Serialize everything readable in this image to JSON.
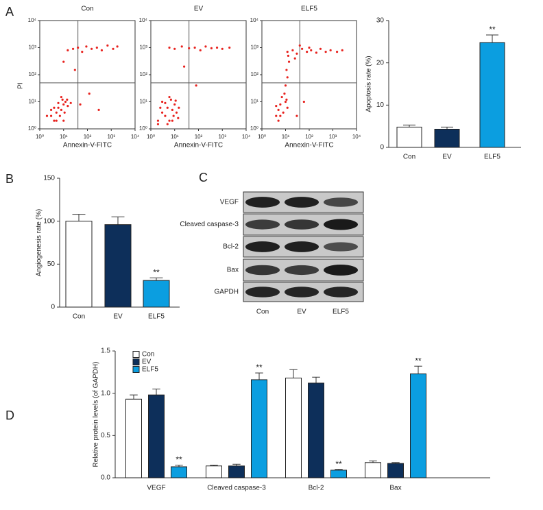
{
  "panel_labels": [
    "A",
    "B",
    "C",
    "D"
  ],
  "blot": {
    "rows": [
      "VEGF",
      "Cleaved caspase-3",
      "Bcl-2",
      "Bax",
      "GAPDH"
    ],
    "columns": [
      "Con",
      "EV",
      "ELF5"
    ]
  },
  "chart_data": [
    {
      "type": "scatter",
      "title": "Con",
      "xlabel": "Annexin-V-FITC",
      "ylabel": "PI",
      "color": "#e8231f",
      "log_scale": true,
      "xlim": [
        1,
        10000
      ],
      "ylim": [
        1,
        10000
      ],
      "xticks": [
        {
          "value": 1,
          "label": "10⁰"
        },
        {
          "value": 10,
          "label": "10¹"
        },
        {
          "value": 100,
          "label": "10²"
        },
        {
          "value": 1000,
          "label": "10³"
        },
        {
          "value": 10000,
          "label": "10⁴"
        }
      ],
      "yticks": [
        {
          "value": 1,
          "label": "10⁰"
        },
        {
          "value": 10,
          "label": "10¹"
        },
        {
          "value": 100,
          "label": "10²"
        },
        {
          "value": 1000,
          "label": "10³"
        },
        {
          "value": 10000,
          "label": "10⁴"
        }
      ],
      "quadrant_x": 40,
      "quadrant_y": 50,
      "x": [
        3,
        4,
        5,
        6,
        8,
        10,
        12,
        7,
        4,
        9,
        15,
        5,
        6,
        11,
        3,
        8,
        14,
        20,
        2,
        10,
        15,
        25,
        40,
        60,
        90,
        150,
        250,
        400,
        700,
        1200,
        1800,
        10,
        30,
        50,
        120,
        300
      ],
      "y": [
        3,
        2,
        4,
        6,
        5,
        8,
        10,
        3,
        6,
        12,
        7,
        2,
        9,
        4,
        5,
        15,
        12,
        9,
        3,
        2,
        800,
        900,
        1000,
        700,
        1100,
        900,
        1000,
        800,
        1200,
        900,
        1100,
        300,
        150,
        8,
        20,
        5
      ]
    },
    {
      "type": "scatter",
      "title": "EV",
      "xlabel": "Annexin-V-FITC",
      "color": "#e8231f",
      "log_scale": true,
      "xlim": [
        1,
        10000
      ],
      "ylim": [
        1,
        10000
      ],
      "xticks": [
        {
          "value": 1,
          "label": "10⁰"
        },
        {
          "value": 10,
          "label": "10¹"
        },
        {
          "value": 100,
          "label": "10²"
        },
        {
          "value": 1000,
          "label": "10³"
        },
        {
          "value": 10000,
          "label": "10⁴"
        }
      ],
      "yticks": [
        {
          "value": 1,
          "label": "10⁰"
        },
        {
          "value": 10,
          "label": "10¹"
        },
        {
          "value": 100,
          "label": "10²"
        },
        {
          "value": 1000,
          "label": "10³"
        },
        {
          "value": 10000,
          "label": "10⁴"
        }
      ],
      "quadrant_x": 40,
      "quadrant_y": 50,
      "x": [
        2,
        3,
        4,
        5,
        6,
        8,
        10,
        3,
        7,
        5,
        12,
        9,
        2.5,
        4,
        6,
        15,
        11,
        2,
        8,
        14,
        6,
        10,
        20,
        40,
        70,
        120,
        200,
        350,
        600,
        1000,
        2000,
        25,
        80
      ],
      "y": [
        2,
        4,
        3,
        6,
        2,
        5,
        8,
        10,
        12,
        1.5,
        4,
        3,
        6,
        9,
        15,
        6,
        11,
        1.5,
        2,
        2.5,
        1000,
        900,
        1100,
        950,
        1000,
        800,
        1100,
        950,
        1000,
        900,
        1000,
        200,
        40
      ]
    },
    {
      "type": "scatter",
      "title": "ELF5",
      "xlabel": "Annexin-V-FITC",
      "color": "#e8231f",
      "log_scale": true,
      "xlim": [
        1,
        10000
      ],
      "ylim": [
        1,
        10000
      ],
      "xticks": [
        {
          "value": 1,
          "label": "10⁰"
        },
        {
          "value": 10,
          "label": "10¹"
        },
        {
          "value": 100,
          "label": "10²"
        },
        {
          "value": 1000,
          "label": "10³"
        },
        {
          "value": 10000,
          "label": "10⁴"
        }
      ],
      "yticks": [
        {
          "value": 1,
          "label": "10⁰"
        },
        {
          "value": 10,
          "label": "10¹"
        },
        {
          "value": 100,
          "label": "10²"
        },
        {
          "value": 1000,
          "label": "10³"
        },
        {
          "value": 10000,
          "label": "10⁴"
        }
      ],
      "quadrant_x": 40,
      "quadrant_y": 50,
      "x": [
        4,
        5,
        6,
        8,
        10,
        7,
        5,
        12,
        9,
        6,
        11,
        4,
        10,
        12,
        11,
        14,
        13,
        12,
        20,
        30,
        50,
        80,
        120,
        200,
        300,
        500,
        800,
        1500,
        2500,
        40,
        100,
        25,
        30,
        60
      ],
      "y": [
        3,
        5,
        8,
        4,
        10,
        15,
        2,
        6,
        20,
        3,
        12,
        7,
        40,
        80,
        150,
        300,
        500,
        700,
        800,
        600,
        900,
        700,
        800,
        650,
        900,
        700,
        800,
        700,
        800,
        1200,
        1000,
        400,
        3,
        10
      ]
    },
    {
      "type": "bar",
      "ylabel": "Apoptosis rate (%)",
      "categories": [
        "Con",
        "EV",
        "ELF5"
      ],
      "values": [
        4.8,
        4.3,
        24.8
      ],
      "errors": [
        0.5,
        0.5,
        1.8
      ],
      "colors": [
        "#ffffff",
        "#0d2f5a",
        "#0b9ee0"
      ],
      "annotations": [
        null,
        null,
        "**"
      ],
      "ylim": [
        0,
        30
      ],
      "yticks": [
        0,
        10,
        20,
        30
      ]
    },
    {
      "type": "bar",
      "ylabel": "Angiogenesis rate (%)",
      "categories": [
        "Con",
        "EV",
        "ELF5"
      ],
      "values": [
        100,
        96,
        31
      ],
      "errors": [
        8,
        9,
        3
      ],
      "colors": [
        "#ffffff",
        "#0d2f5a",
        "#0b9ee0"
      ],
      "annotations": [
        null,
        null,
        "**"
      ],
      "ylim": [
        0,
        150
      ],
      "yticks": [
        0,
        50,
        100,
        150
      ]
    },
    {
      "type": "grouped_bar",
      "ylabel": "Relative protein levels (of GAPDH)",
      "legend": "upper left",
      "categories": [
        "VEGF",
        "Cleaved caspase-3",
        "Bcl-2",
        "Bax"
      ],
      "series": [
        {
          "name": "Con",
          "color": "#ffffff",
          "values": [
            0.93,
            0.14,
            1.18,
            0.18
          ],
          "errors": [
            0.05,
            0.01,
            0.1,
            0.02
          ],
          "annotations": [
            null,
            null,
            null,
            null
          ]
        },
        {
          "name": "EV",
          "color": "#0d2f5a",
          "values": [
            0.98,
            0.14,
            1.12,
            0.17
          ],
          "errors": [
            0.07,
            0.02,
            0.07,
            0.01
          ],
          "annotations": [
            null,
            null,
            null,
            null
          ]
        },
        {
          "name": "ELF5",
          "color": "#0b9ee0",
          "values": [
            0.13,
            1.16,
            0.09,
            1.23
          ],
          "errors": [
            0.02,
            0.08,
            0.01,
            0.09
          ],
          "annotations": [
            "**",
            "**",
            "**",
            "**"
          ]
        }
      ],
      "ylim": [
        0,
        1.5
      ],
      "yticks": [
        {
          "value": 0,
          "label": "0.0"
        },
        0.5,
        {
          "value": 1,
          "label": "1.0"
        },
        1.5
      ]
    }
  ]
}
